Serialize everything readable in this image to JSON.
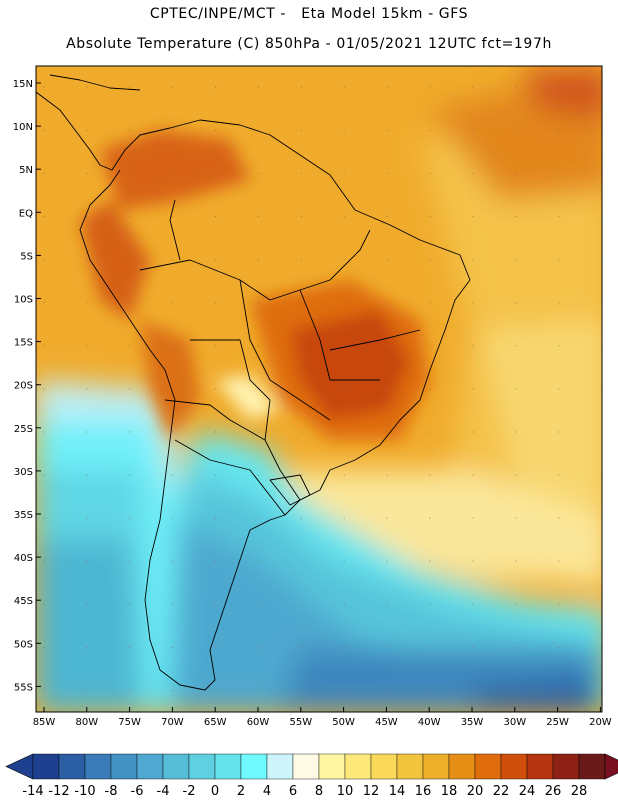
{
  "header": {
    "title_line1": "CPTEC/INPE/MCT -   Eta Model 15km - GFS",
    "title_line2": "Absolute Temperature (C) 850hPa - 01/05/2021 12UTC fct=197h"
  },
  "map": {
    "lat_labels": [
      "15N",
      "10N",
      "5N",
      "EQ",
      "5S",
      "10S",
      "15S",
      "20S",
      "25S",
      "30S",
      "35S",
      "40S",
      "45S",
      "50S",
      "55S"
    ],
    "lon_labels": [
      "85W",
      "80W",
      "75W",
      "70W",
      "65W",
      "60W",
      "55W",
      "50W",
      "45W",
      "40W",
      "35W",
      "30W",
      "25W",
      "20W"
    ]
  },
  "colorbar": {
    "labels": [
      "-14",
      "-12",
      "-10",
      "-8",
      "-6",
      "-4",
      "-2",
      "0",
      "2",
      "4",
      "6",
      "8",
      "10",
      "12",
      "14",
      "16",
      "18",
      "20",
      "22",
      "24",
      "26",
      "28"
    ],
    "colors": [
      "#1f3f8f",
      "#2b5ea3",
      "#3a7bb8",
      "#4492c4",
      "#4ea8cf",
      "#57bcd6",
      "#5fd0e0",
      "#66e2ea",
      "#6ffaff",
      "#cef4fb",
      "#fffae6",
      "#fff5a3",
      "#fde97a",
      "#f9d85a",
      "#f2c43e",
      "#ecb02a",
      "#e58f17",
      "#df6d0d",
      "#d04f0a",
      "#b53510",
      "#8f2216",
      "#6b1a1a"
    ],
    "under_color": "#1f3f8f",
    "over_color": "#7a0f20"
  }
}
